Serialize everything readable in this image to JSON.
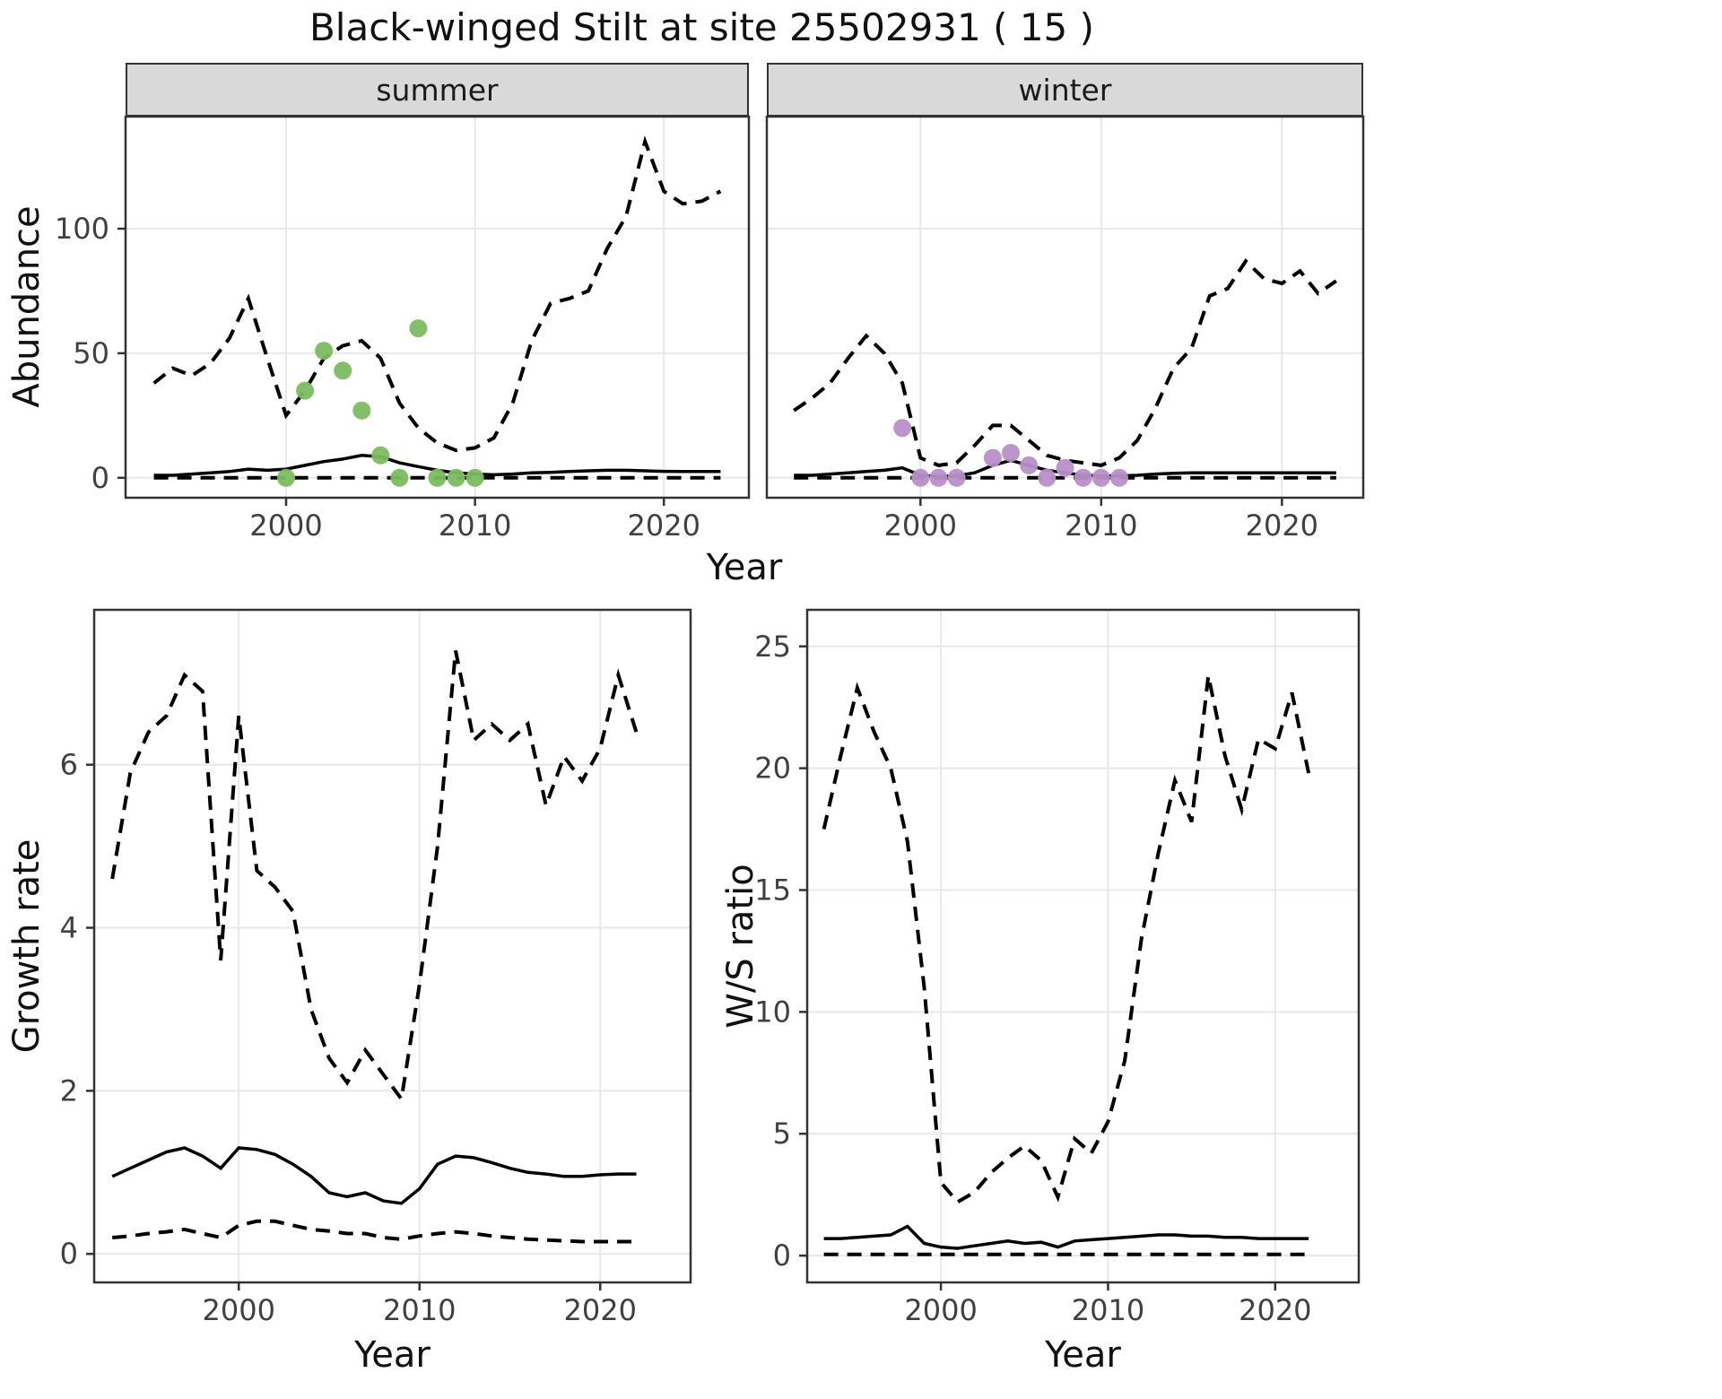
{
  "title": "Black-winged Stilt at site 25502931 ( 15 )",
  "colors": {
    "panel_bg": "#ffffff",
    "grid": "#e8e8e8",
    "panel_border": "#333333",
    "strip_bg": "#d9d9d9",
    "line": "#000000",
    "tick_text": "#404040",
    "summer_points": "#7abd5f",
    "winter_points": "#b78fc9"
  },
  "chart_data": [
    {
      "id": "abundance-summer",
      "type": "line",
      "facet_label": "summer",
      "title": "",
      "xlabel": "Year",
      "ylabel": "Abundance",
      "x_domain": [
        1991.5,
        2024.5
      ],
      "y_domain": [
        -8,
        145
      ],
      "x_ticks": [
        2000,
        2010,
        2020
      ],
      "y_ticks": [
        0,
        50,
        100
      ],
      "grid": true,
      "legend": "none",
      "x": [
        1993,
        1994,
        1995,
        1996,
        1997,
        1998,
        1999,
        2000,
        2001,
        2002,
        2003,
        2004,
        2005,
        2006,
        2007,
        2008,
        2009,
        2010,
        2011,
        2012,
        2013,
        2014,
        2015,
        2016,
        2017,
        2018,
        2019,
        2020,
        2021,
        2022,
        2023
      ],
      "series": [
        {
          "name": "upper-ci",
          "style": "dashed",
          "values": [
            38,
            44,
            41,
            46,
            56,
            72,
            48,
            25,
            35,
            48,
            53,
            55,
            48,
            30,
            20,
            14,
            11,
            12,
            16,
            30,
            55,
            70,
            72,
            75,
            92,
            105,
            135,
            115,
            110,
            111,
            115
          ]
        },
        {
          "name": "median",
          "style": "solid",
          "values": [
            1,
            1,
            1.5,
            2,
            2.5,
            3.5,
            3,
            3.5,
            5,
            6.5,
            7.5,
            9,
            8.5,
            6,
            4.5,
            3,
            2,
            1.5,
            1.2,
            1.5,
            2,
            2.2,
            2.5,
            2.8,
            3,
            3,
            2.8,
            2.6,
            2.5,
            2.5,
            2.5
          ]
        },
        {
          "name": "lower-ci",
          "style": "dashed",
          "values": [
            0,
            0,
            0,
            0,
            0,
            0,
            0,
            0,
            0,
            0,
            0,
            0,
            0,
            0,
            0,
            0,
            0,
            0,
            0,
            0,
            0,
            0,
            0,
            0,
            0,
            0,
            0,
            0,
            0,
            0,
            0
          ]
        }
      ],
      "points": {
        "name": "summer-observed-count",
        "color": "#7abd5f",
        "x": [
          2000,
          2001,
          2002,
          2003,
          2004,
          2005,
          2006,
          2007,
          2008,
          2009,
          2010
        ],
        "y": [
          0,
          35,
          51,
          43,
          27,
          9,
          0,
          60,
          0,
          0,
          0
        ]
      }
    },
    {
      "id": "abundance-winter",
      "type": "line",
      "facet_label": "winter",
      "title": "",
      "xlabel": "Year",
      "ylabel": "Abundance",
      "x_domain": [
        1991.5,
        2024.5
      ],
      "y_domain": [
        -8,
        145
      ],
      "x_ticks": [
        2000,
        2010,
        2020
      ],
      "y_ticks": [
        0,
        50,
        100
      ],
      "grid": true,
      "legend": "none",
      "x": [
        1993,
        1994,
        1995,
        1996,
        1997,
        1998,
        1999,
        2000,
        2001,
        2002,
        2003,
        2004,
        2005,
        2006,
        2007,
        2008,
        2009,
        2010,
        2011,
        2012,
        2013,
        2014,
        2015,
        2016,
        2017,
        2018,
        2019,
        2020,
        2021,
        2022,
        2023
      ],
      "series": [
        {
          "name": "upper-ci",
          "style": "dashed",
          "values": [
            27,
            32,
            38,
            48,
            57,
            50,
            38,
            8,
            5,
            6,
            13,
            21,
            21,
            15,
            9,
            7,
            6,
            5,
            8,
            15,
            28,
            44,
            52,
            73,
            76,
            87,
            80,
            78,
            83,
            74,
            79
          ]
        },
        {
          "name": "median",
          "style": "solid",
          "values": [
            1,
            1,
            1.5,
            2,
            2.5,
            3,
            4,
            1,
            0.5,
            0.8,
            2,
            5,
            7,
            5,
            3,
            2,
            1,
            0.8,
            0.8,
            1,
            1.5,
            1.8,
            2,
            2,
            2,
            2,
            2,
            2,
            2,
            2,
            2
          ]
        },
        {
          "name": "lower-ci",
          "style": "dashed",
          "values": [
            0,
            0,
            0,
            0,
            0,
            0,
            0,
            0,
            0,
            0,
            0,
            0,
            0,
            0,
            0,
            0,
            0,
            0,
            0,
            0,
            0,
            0,
            0,
            0,
            0,
            0,
            0,
            0,
            0,
            0,
            0
          ]
        }
      ],
      "points": {
        "name": "winter-observed-count",
        "color": "#b78fc9",
        "x": [
          1999,
          2000,
          2001,
          2002,
          2004,
          2005,
          2006,
          2007,
          2008,
          2009,
          2010,
          2011
        ],
        "y": [
          20,
          0,
          0,
          0,
          8,
          10,
          5,
          0,
          4,
          0,
          0,
          0
        ]
      }
    },
    {
      "id": "growth-rate",
      "type": "line",
      "facet_label": "",
      "title": "",
      "xlabel": "Year",
      "ylabel": "Growth rate",
      "x_domain": [
        1992,
        2025
      ],
      "y_domain": [
        -0.35,
        7.9
      ],
      "x_ticks": [
        2000,
        2010,
        2020
      ],
      "y_ticks": [
        0,
        2,
        4,
        6
      ],
      "grid": true,
      "legend": "none",
      "x": [
        1993,
        1994,
        1995,
        1996,
        1997,
        1998,
        1999,
        2000,
        2001,
        2002,
        2003,
        2004,
        2005,
        2006,
        2007,
        2008,
        2009,
        2010,
        2011,
        2012,
        2013,
        2014,
        2015,
        2016,
        2017,
        2018,
        2019,
        2020,
        2021,
        2022
      ],
      "series": [
        {
          "name": "upper-ci",
          "style": "dashed",
          "values": [
            4.6,
            5.9,
            6.4,
            6.6,
            7.1,
            6.9,
            3.6,
            6.6,
            4.7,
            4.5,
            4.2,
            3.0,
            2.4,
            2.1,
            2.5,
            2.2,
            1.9,
            3.3,
            5.0,
            7.4,
            6.3,
            6.5,
            6.3,
            6.5,
            5.5,
            6.1,
            5.8,
            6.2,
            7.1,
            6.4
          ]
        },
        {
          "name": "median",
          "style": "solid",
          "values": [
            0.95,
            1.05,
            1.15,
            1.25,
            1.3,
            1.2,
            1.05,
            1.3,
            1.28,
            1.22,
            1.1,
            0.95,
            0.75,
            0.7,
            0.75,
            0.65,
            0.62,
            0.8,
            1.1,
            1.2,
            1.18,
            1.12,
            1.05,
            1.0,
            0.98,
            0.95,
            0.95,
            0.97,
            0.98,
            0.98
          ]
        },
        {
          "name": "lower-ci",
          "style": "dashed",
          "values": [
            0.2,
            0.22,
            0.25,
            0.27,
            0.3,
            0.25,
            0.2,
            0.35,
            0.4,
            0.4,
            0.35,
            0.3,
            0.28,
            0.25,
            0.25,
            0.2,
            0.18,
            0.22,
            0.25,
            0.27,
            0.25,
            0.22,
            0.2,
            0.18,
            0.17,
            0.16,
            0.15,
            0.15,
            0.15,
            0.15
          ]
        }
      ]
    },
    {
      "id": "ws-ratio",
      "type": "line",
      "facet_label": "",
      "title": "",
      "xlabel": "Year",
      "ylabel": "W/S ratio",
      "x_domain": [
        1992,
        2025
      ],
      "y_domain": [
        -1.1,
        26.5
      ],
      "x_ticks": [
        2000,
        2010,
        2020
      ],
      "y_ticks": [
        0,
        5,
        10,
        15,
        20,
        25
      ],
      "grid": true,
      "legend": "none",
      "x": [
        1993,
        1994,
        1995,
        1996,
        1997,
        1998,
        1999,
        2000,
        2001,
        2002,
        2003,
        2004,
        2005,
        2006,
        2007,
        2008,
        2009,
        2010,
        2011,
        2012,
        2013,
        2014,
        2015,
        2016,
        2017,
        2018,
        2019,
        2020,
        2021,
        2022
      ],
      "series": [
        {
          "name": "upper-ci",
          "style": "dashed",
          "values": [
            17.5,
            20.5,
            23.3,
            21.5,
            20.0,
            17.0,
            11.0,
            3.0,
            2.2,
            2.6,
            3.4,
            4.0,
            4.5,
            3.9,
            2.4,
            4.8,
            4.2,
            5.5,
            8.0,
            13.0,
            16.5,
            19.5,
            17.8,
            23.8,
            20.5,
            18.3,
            21.2,
            20.8,
            23.1,
            19.8
          ]
        },
        {
          "name": "median",
          "style": "solid",
          "values": [
            0.7,
            0.7,
            0.75,
            0.8,
            0.85,
            1.2,
            0.5,
            0.35,
            0.3,
            0.4,
            0.5,
            0.6,
            0.5,
            0.55,
            0.35,
            0.6,
            0.65,
            0.7,
            0.75,
            0.8,
            0.85,
            0.85,
            0.8,
            0.8,
            0.75,
            0.75,
            0.7,
            0.7,
            0.7,
            0.7
          ]
        },
        {
          "name": "lower-ci",
          "style": "dashed",
          "values": [
            0.05,
            0.05,
            0.05,
            0.05,
            0.05,
            0.05,
            0.05,
            0.05,
            0.05,
            0.05,
            0.05,
            0.05,
            0.05,
            0.05,
            0.05,
            0.05,
            0.05,
            0.05,
            0.05,
            0.05,
            0.05,
            0.05,
            0.05,
            0.05,
            0.05,
            0.05,
            0.05,
            0.05,
            0.05,
            0.05
          ]
        }
      ]
    }
  ]
}
